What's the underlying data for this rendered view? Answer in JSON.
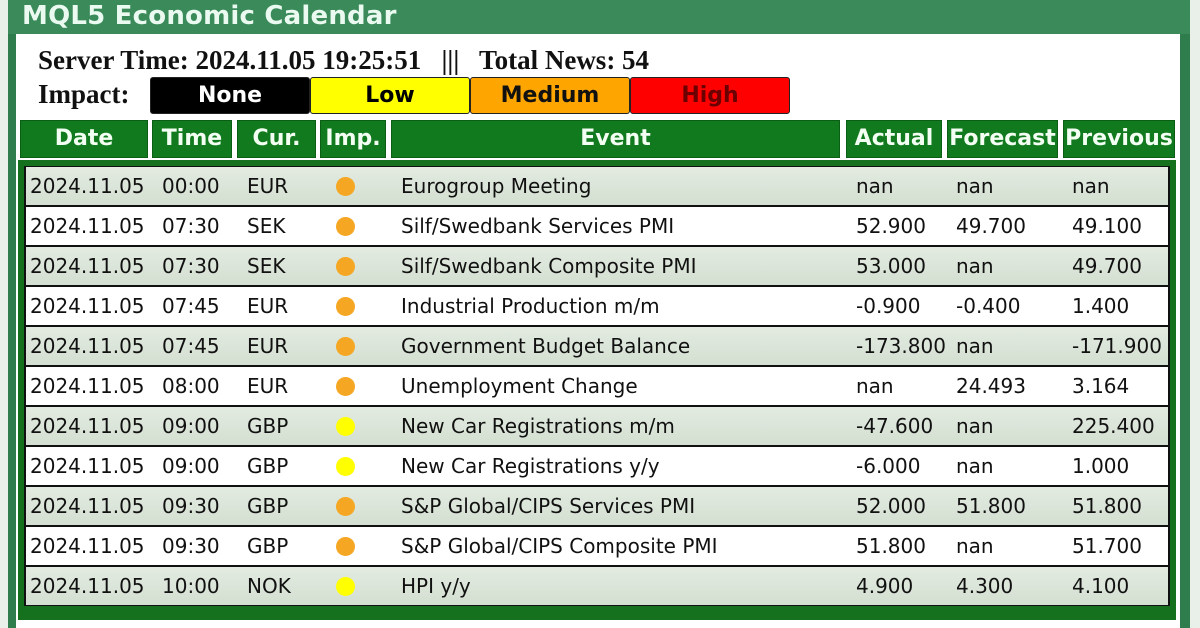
{
  "window": {
    "title": "MQL5 Economic Calendar"
  },
  "info": {
    "server_time_label": "Server Time:",
    "server_time": "2024.11.05 19:25:51",
    "separator": "|||",
    "total_news_label": "Total News:",
    "total_news": "54",
    "line": "Server Time: 2024.11.05 19:25:51   |||   Total News: 54"
  },
  "impact": {
    "label": "Impact:",
    "buttons": [
      {
        "label": "None",
        "bg": "#000000",
        "fg": "#ffffff"
      },
      {
        "label": "Low",
        "bg": "#ffff00",
        "fg": "#000000"
      },
      {
        "label": "Medium",
        "bg": "#ffa500",
        "fg": "#000000"
      },
      {
        "label": "High",
        "bg": "#ff0000",
        "fg": "#6b0000"
      }
    ]
  },
  "colors": {
    "title_bg": "#3a8a5a",
    "header_bg": "#127a1e",
    "medium_dot": "#f5a623",
    "low_dot": "#ffff00"
  },
  "table": {
    "headers": [
      "Date",
      "Time",
      "Cur.",
      "Imp.",
      "Event",
      "Actual",
      "Forecast",
      "Previous"
    ],
    "rows": [
      {
        "date": "2024.11.05",
        "time": "00:00",
        "cur": "EUR",
        "imp": "medium",
        "event": "Eurogroup Meeting",
        "actual": "nan",
        "forecast": "nan",
        "previous": "nan"
      },
      {
        "date": "2024.11.05",
        "time": "07:30",
        "cur": "SEK",
        "imp": "medium",
        "event": "Silf/Swedbank Services PMI",
        "actual": "52.900",
        "forecast": "49.700",
        "previous": "49.100"
      },
      {
        "date": "2024.11.05",
        "time": "07:30",
        "cur": "SEK",
        "imp": "medium",
        "event": "Silf/Swedbank Composite PMI",
        "actual": "53.000",
        "forecast": "nan",
        "previous": "49.700"
      },
      {
        "date": "2024.11.05",
        "time": "07:45",
        "cur": "EUR",
        "imp": "medium",
        "event": "Industrial Production m/m",
        "actual": "-0.900",
        "forecast": "-0.400",
        "previous": "1.400"
      },
      {
        "date": "2024.11.05",
        "time": "07:45",
        "cur": "EUR",
        "imp": "medium",
        "event": "Government Budget Balance",
        "actual": "-173.800",
        "forecast": "nan",
        "previous": "-171.900"
      },
      {
        "date": "2024.11.05",
        "time": "08:00",
        "cur": "EUR",
        "imp": "medium",
        "event": "Unemployment Change",
        "actual": "nan",
        "forecast": "24.493",
        "previous": "3.164"
      },
      {
        "date": "2024.11.05",
        "time": "09:00",
        "cur": "GBP",
        "imp": "low",
        "event": "New Car Registrations m/m",
        "actual": "-47.600",
        "forecast": "nan",
        "previous": "225.400"
      },
      {
        "date": "2024.11.05",
        "time": "09:00",
        "cur": "GBP",
        "imp": "low",
        "event": "New Car Registrations y/y",
        "actual": "-6.000",
        "forecast": "nan",
        "previous": "1.000"
      },
      {
        "date": "2024.11.05",
        "time": "09:30",
        "cur": "GBP",
        "imp": "medium",
        "event": "S&P Global/CIPS Services PMI",
        "actual": "52.000",
        "forecast": "51.800",
        "previous": "51.800"
      },
      {
        "date": "2024.11.05",
        "time": "09:30",
        "cur": "GBP",
        "imp": "medium",
        "event": "S&P Global/CIPS Composite PMI",
        "actual": "51.800",
        "forecast": "nan",
        "previous": "51.700"
      },
      {
        "date": "2024.11.05",
        "time": "10:00",
        "cur": "NOK",
        "imp": "low",
        "event": "HPI y/y",
        "actual": "4.900",
        "forecast": "4.300",
        "previous": "4.100"
      }
    ]
  }
}
